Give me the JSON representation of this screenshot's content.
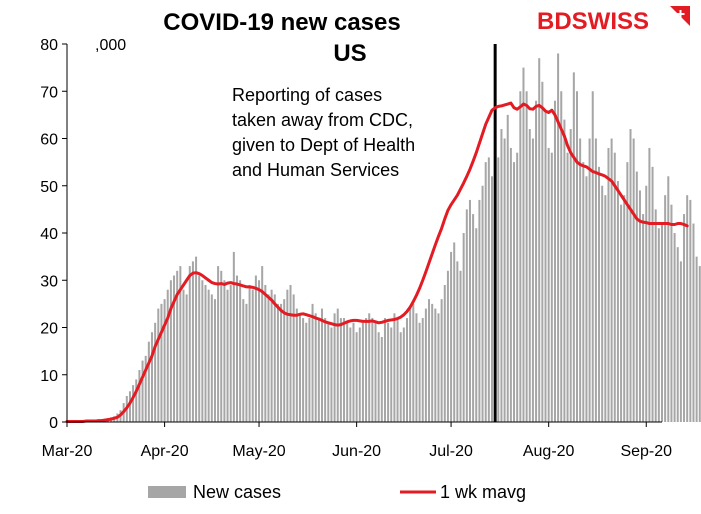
{
  "chart_data": {
    "type": "bar",
    "title": "COVID-19 new cases",
    "subtitle": "US",
    "unit_label": ",000",
    "x_tick_labels": [
      "Mar-20",
      "Apr-20",
      "May-20",
      "Jun-20",
      "Jul-20",
      "Aug-20",
      "Sep-20"
    ],
    "y_ticks": [
      0,
      10,
      20,
      30,
      40,
      50,
      60,
      70,
      80
    ],
    "ylim": [
      0,
      80
    ],
    "x_range": [
      "2020-03-01",
      "2020-09-06"
    ],
    "grid": false,
    "legend_position": "bottom",
    "annotation": [
      "Reporting of cases",
      "taken away from CDC,",
      "given to Dept of Health",
      "and Human Services"
    ],
    "vertical_line_date": "2020-07-15",
    "series": [
      {
        "name": "New cases",
        "type": "bar",
        "color": "#a6a6a6",
        "start_date": "2020-03-01",
        "values": [
          0.1,
          0.1,
          0.1,
          0.1,
          0.1,
          0.2,
          0.2,
          0.3,
          0.3,
          0.3,
          0.4,
          0.5,
          0.6,
          0.8,
          1.0,
          1.2,
          1.8,
          2.5,
          4.0,
          5.5,
          6.5,
          7.8,
          9.0,
          11,
          13,
          14,
          17,
          19,
          21,
          24,
          25,
          26,
          28,
          30,
          31,
          32,
          33,
          28,
          27,
          33,
          34,
          35,
          31,
          30,
          29,
          28,
          27,
          26,
          33,
          32,
          30,
          28,
          29,
          36,
          31,
          30,
          26,
          25,
          29,
          28,
          31,
          30,
          33,
          29,
          27,
          28,
          27,
          25,
          25,
          26,
          28,
          29,
          27,
          24,
          23,
          22,
          21,
          22,
          25,
          23,
          22,
          24,
          22,
          21,
          20,
          23,
          24,
          22,
          22,
          21,
          20,
          21,
          19,
          20,
          21,
          22,
          23,
          22,
          21,
          19,
          18,
          22,
          21,
          20,
          23,
          22,
          19,
          20,
          22,
          24,
          25,
          23,
          21,
          22,
          24,
          26,
          25,
          24,
          23,
          26,
          29,
          32,
          36,
          38,
          34,
          32,
          40,
          45,
          47,
          44,
          41,
          47,
          50,
          55,
          56,
          52,
          48,
          56,
          62,
          60,
          65,
          58,
          55,
          57,
          70,
          75,
          70,
          62,
          60,
          68,
          77,
          72,
          66,
          58,
          57,
          68,
          78,
          70,
          64,
          57,
          62,
          74,
          70,
          60,
          55,
          52,
          60,
          70,
          60,
          54,
          50,
          48,
          58,
          60,
          57,
          51,
          46,
          48,
          55,
          62,
          60,
          53,
          49,
          44,
          50,
          58,
          54,
          45,
          41,
          42,
          48,
          52,
          46,
          40,
          37,
          34,
          44,
          48,
          47,
          42,
          35,
          33,
          41,
          44
        ]
      },
      {
        "name": "1 wk mavg",
        "type": "line",
        "color": "#e31b23",
        "start_date": "2020-03-01",
        "values": [
          0.1,
          0.1,
          0.1,
          0.1,
          0.1,
          0.1,
          0.2,
          0.2,
          0.2,
          0.2,
          0.3,
          0.3,
          0.4,
          0.5,
          0.6,
          0.8,
          1.0,
          1.5,
          2.2,
          3.0,
          4.0,
          5.2,
          6.5,
          8.0,
          9.5,
          11,
          12.5,
          14,
          16,
          17.5,
          19,
          20.5,
          22,
          24,
          25.5,
          27,
          28,
          29,
          30,
          31,
          31.5,
          31.6,
          31.4,
          31,
          30.5,
          30,
          29.5,
          29.3,
          29.2,
          29.3,
          29.1,
          29.4,
          29.5,
          29.3,
          29.2,
          29.0,
          28.8,
          28.6,
          28.6,
          28.5,
          28.3,
          28.0,
          27.6,
          27.0,
          26.4,
          25.8,
          25.0,
          24.3,
          23.6,
          23.1,
          22.8,
          22.7,
          22.6,
          22.6,
          22.8,
          22.9,
          22.7,
          22.5,
          22.3,
          22.0,
          21.8,
          21.5,
          21.2,
          21.0,
          20.8,
          20.6,
          20.5,
          20.6,
          20.9,
          21.2,
          21.4,
          21.5,
          21.5,
          21.4,
          21.3,
          21.3,
          21.3,
          21.4,
          21.2,
          21.0,
          21.1,
          21.3,
          21.5,
          21.6,
          21.7,
          21.9,
          22.2,
          22.7,
          23.4,
          24.3,
          25.5,
          26.8,
          28.3,
          30.0,
          31.8,
          33.7,
          35.6,
          37.5,
          39.3,
          41.0,
          43.0,
          44.8,
          46.0,
          47.0,
          48.0,
          49.3,
          50.6,
          52.0,
          53.5,
          55.2,
          57.0,
          59.0,
          61.0,
          63.0,
          64.5,
          66.0,
          66.5,
          66.8,
          66.9,
          67.1,
          67.3,
          67.5,
          66.5,
          66.2,
          66.7,
          67.3,
          67.0,
          66.3,
          66.2,
          66.8,
          67.0,
          66.5,
          65.8,
          65.5,
          66.0,
          65.0,
          63.5,
          62.0,
          60.5,
          58.5,
          57.0,
          56.0,
          55.0,
          54.5,
          54.2,
          54.0,
          53.5,
          53.0,
          52.8,
          52.5,
          52.3,
          52.0,
          51.5,
          51.0,
          50.0,
          49.0,
          48.0,
          47.0,
          46.0,
          45.0,
          44.0,
          43.0,
          42.5,
          42.3,
          42.2,
          42.0,
          42.0,
          42.0,
          42.0,
          42.0,
          42.0,
          42.0,
          41.8,
          41.8,
          42.0,
          42.0,
          41.8,
          41.5
        ]
      }
    ]
  },
  "brand": {
    "text_bd": "BD",
    "text_swiss": "SWISS",
    "text_color": "#e31b23"
  },
  "legend": {
    "bar_label": "New cases",
    "line_label": "1 wk mavg"
  }
}
